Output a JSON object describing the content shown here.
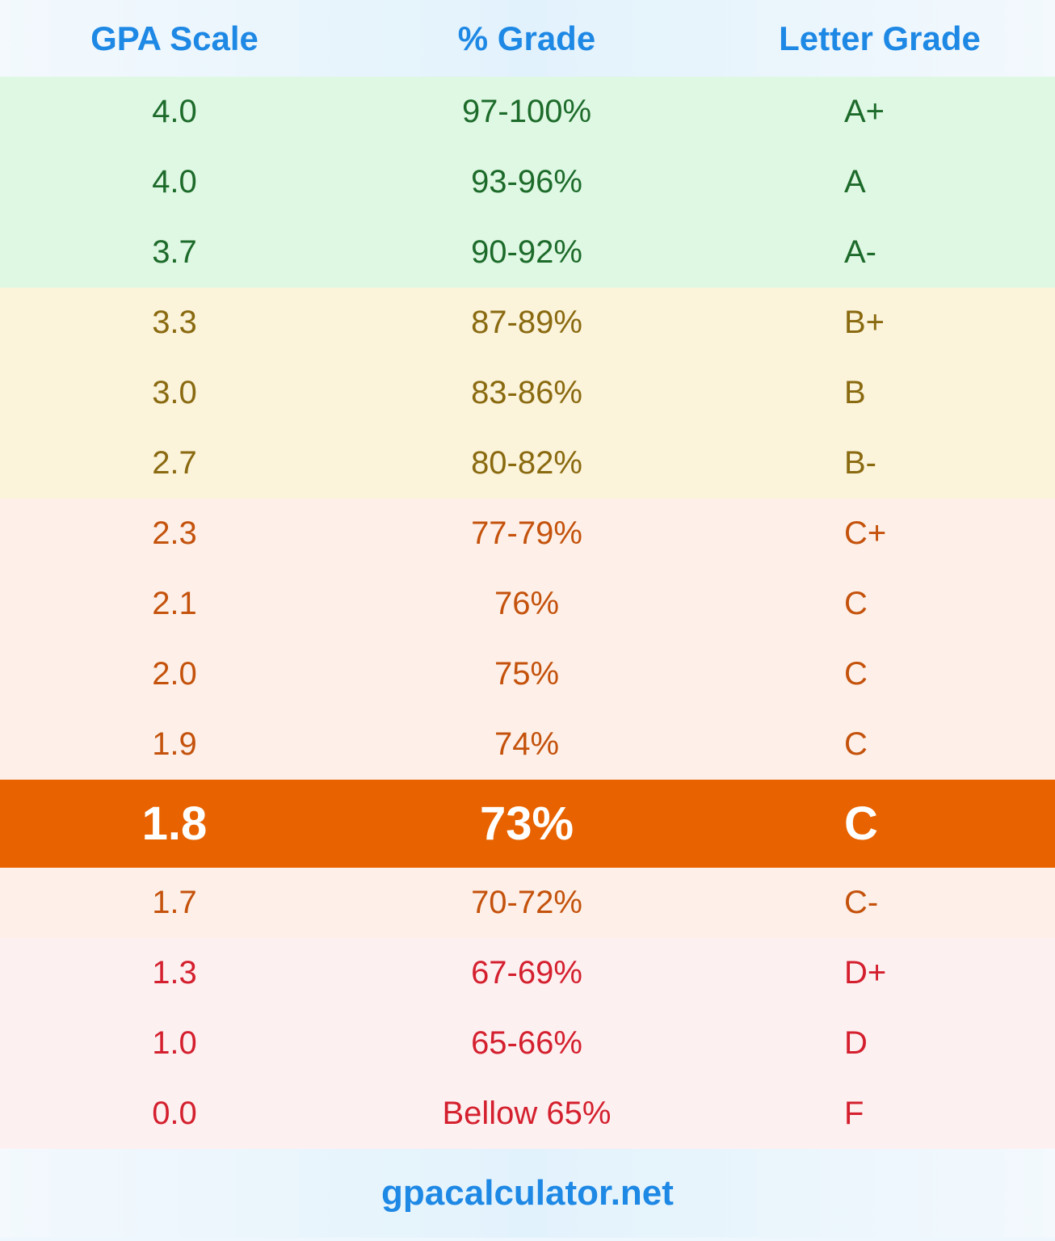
{
  "header": {
    "columns": [
      "GPA Scale",
      "% Grade",
      "Letter Grade"
    ]
  },
  "table": {
    "rows": [
      [
        "4.0",
        "97-100%",
        "A+"
      ],
      [
        "4.0",
        "93-96%",
        "A"
      ],
      [
        "3.7",
        "90-92%",
        "A-"
      ],
      [
        "3.3",
        "87-89%",
        "B+"
      ],
      [
        "3.0",
        "83-86%",
        "B"
      ],
      [
        "2.7",
        "80-82%",
        "B-"
      ],
      [
        "2.3",
        "77-79%",
        "C+"
      ],
      [
        "2.1",
        "76%",
        "C"
      ],
      [
        "2.0",
        "75%",
        "C"
      ],
      [
        "1.9",
        "74%",
        "C"
      ],
      [
        "1.8",
        "73%",
        "C"
      ],
      [
        "1.7",
        "70-72%",
        "C-"
      ],
      [
        "1.3",
        "67-69%",
        "D+"
      ],
      [
        "1.0",
        "65-66%",
        "D"
      ],
      [
        "0.0",
        "Bellow 65%",
        "F"
      ]
    ]
  },
  "footer": {
    "text": "gpacalculator.net"
  }
}
